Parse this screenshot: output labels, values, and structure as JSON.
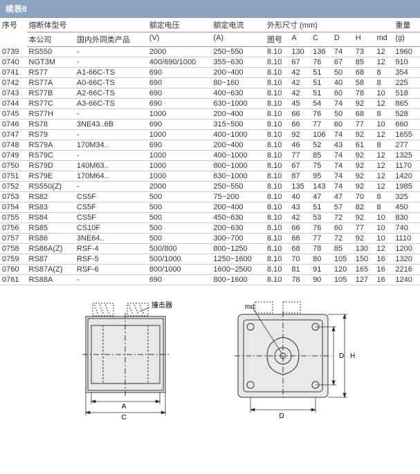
{
  "title": "续表8",
  "headers": {
    "seq": "序号",
    "fuse_model": "熔断体型号",
    "company": "本公司",
    "similar": "国内外同类产品",
    "rated_v": "额定电压",
    "rated_v_unit": "(V)",
    "rated_a": "额定电流",
    "rated_a_unit": "(A)",
    "dims": "外形尺寸 (mm)",
    "fig": "图号",
    "A": "A",
    "C": "C",
    "D": "D",
    "H": "H",
    "md": "md",
    "weight": "重量",
    "weight_unit": "(g)"
  },
  "rows": [
    [
      "0739",
      "RS550",
      "-",
      "2000",
      "250~550",
      "8.10",
      "130",
      "136",
      "74",
      "73",
      "12",
      "1960"
    ],
    [
      "0740",
      "NGT3M",
      "-",
      "400/690/1000",
      "355~630",
      "8.10",
      "67",
      "76",
      "67",
      "85",
      "12",
      "910"
    ],
    [
      "0741",
      "RS77",
      "A1-66C-TS",
      "690",
      "200~400",
      "8.10",
      "42",
      "51",
      "50",
      "68",
      "8",
      "354"
    ],
    [
      "0742",
      "RS77A",
      "A0-66C-TS",
      "690",
      "80~160",
      "8.10",
      "42",
      "51",
      "40",
      "58",
      "8",
      "225"
    ],
    [
      "0743",
      "RS77B",
      "A2-66C-TS",
      "690",
      "400~630",
      "8.10",
      "42",
      "51",
      "60",
      "78",
      "10",
      "518"
    ],
    [
      "0744",
      "RS77C",
      "A3-66C-TS",
      "690",
      "630~1000",
      "8.10",
      "45",
      "54",
      "74",
      "92",
      "12",
      "865"
    ],
    [
      "0745",
      "RS77H",
      "-",
      "1000",
      "200~400",
      "8.10",
      "66",
      "76",
      "50",
      "68",
      "8",
      "528"
    ],
    [
      "0746",
      "RS78",
      "3NE43..6B",
      "690",
      "315~500",
      "8.10",
      "66",
      "77",
      "60",
      "77",
      "10",
      "660"
    ],
    [
      "0747",
      "RS79",
      "-",
      "1000",
      "400~1000",
      "8.10",
      "92",
      "106",
      "74",
      "92",
      "12",
      "1655"
    ],
    [
      "0748",
      "RS79A",
      "170M34..",
      "690",
      "200~400",
      "8.10",
      "46",
      "52",
      "43",
      "61",
      "8",
      "277"
    ],
    [
      "0749",
      "RS79C",
      "-",
      "1000",
      "400~1000",
      "8.10",
      "77",
      "85",
      "74",
      "92",
      "12",
      "1325"
    ],
    [
      "0750",
      "RS79D",
      "140M63..",
      "1000",
      "800~1000",
      "8.10",
      "67",
      "75",
      "74",
      "92",
      "12",
      "1170"
    ],
    [
      "0751",
      "RS79E",
      "170M64..",
      "1000",
      "630~1000",
      "8.10",
      "87",
      "95",
      "74",
      "92",
      "12",
      "1420"
    ],
    [
      "0752",
      "RS550(Z)",
      "-",
      "2000",
      "250~550",
      "8.10",
      "135",
      "143",
      "74",
      "92",
      "12",
      "1985"
    ],
    [
      "0753",
      "RS82",
      "CS5F",
      "500",
      "75~200",
      "8.10",
      "40",
      "47",
      "47",
      "70",
      "8",
      "325"
    ],
    [
      "0754",
      "RS83",
      "CS5F",
      "500",
      "200~400",
      "8.10",
      "43",
      "51",
      "57",
      "82",
      "8",
      "450"
    ],
    [
      "0755",
      "RS84",
      "CS5F",
      "500",
      "450~630",
      "8.10",
      "42",
      "53",
      "72",
      "92",
      "10",
      "830"
    ],
    [
      "0756",
      "RS85",
      "CS10F",
      "500",
      "200~630",
      "8.10",
      "66",
      "76",
      "60",
      "77",
      "10",
      "740"
    ],
    [
      "0757",
      "RS86",
      "3NE64..",
      "500",
      "300~700",
      "8.10",
      "66",
      "77",
      "72",
      "92",
      "10",
      "1110"
    ],
    [
      "0758",
      "RS86A(Z)",
      "RSF-4",
      "500/800",
      "800~1250",
      "8.10",
      "68",
      "78",
      "85",
      "130",
      "12",
      "1200"
    ],
    [
      "0759",
      "RS87",
      "RSF-5",
      "500/1000",
      "1250~1600",
      "8.10",
      "70",
      "80",
      "105",
      "150",
      "16",
      "1320"
    ],
    [
      "0760",
      "RS87A(Z)",
      "RSF-6",
      "800/1000",
      "1600~2500",
      "8.10",
      "81",
      "91",
      "120",
      "165",
      "16",
      "2216"
    ],
    [
      "0761",
      "RS88A",
      "-",
      "690",
      "800~1600",
      "8.10",
      "78",
      "90",
      "105",
      "127",
      "16",
      "1240"
    ]
  ],
  "diagram_labels": {
    "striker": "撞击器",
    "A": "A",
    "C": "C",
    "D": "D",
    "H": "H",
    "md": "md"
  },
  "colors": {
    "titlebar": "#8BA5C0",
    "border": "#999",
    "row_border": "#ccc",
    "diagram_fill": "#e8e8e8",
    "diagram_stroke": "#333"
  }
}
